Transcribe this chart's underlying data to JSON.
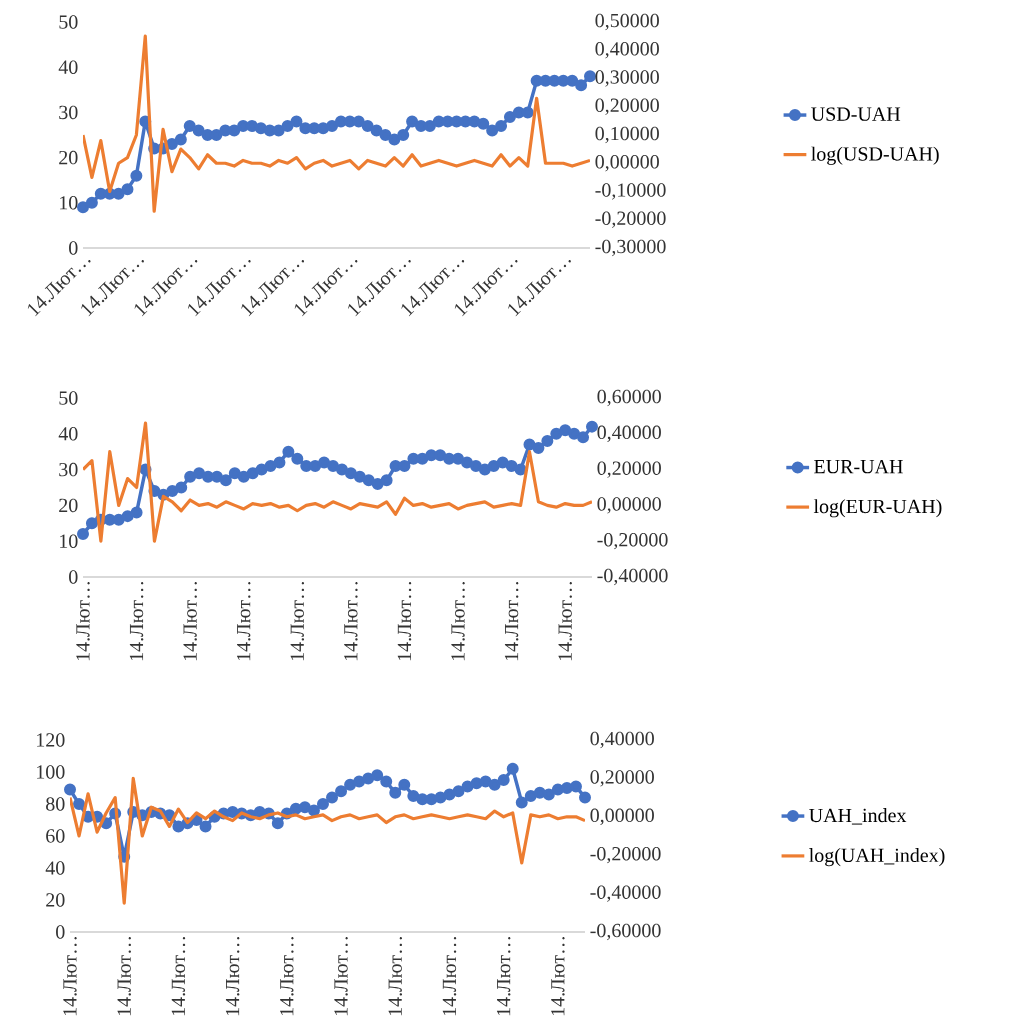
{
  "chart_data": [
    {
      "type": "line",
      "categories": [
        "14.Лют…",
        null,
        null,
        null,
        null,
        null,
        "14.Лют…",
        null,
        null,
        null,
        null,
        null,
        "14.Лют…",
        null,
        null,
        null,
        null,
        null,
        "14.Лют…",
        null,
        null,
        null,
        null,
        null,
        "14.Лют…",
        null,
        null,
        null,
        null,
        null,
        "14.Лют…",
        null,
        null,
        null,
        null,
        null,
        "14.Лют…",
        null,
        null,
        null,
        null,
        null,
        "14.Лют…",
        null,
        null,
        null,
        null,
        null,
        "14.Лют…",
        null,
        null,
        null,
        null,
        null,
        "14.Лют…",
        null,
        null,
        null
      ],
      "series": [
        {
          "name": "USD-UAH",
          "color": "#4472c4",
          "marker": "circle",
          "values": [
            9,
            10,
            12,
            12,
            12,
            13,
            16,
            28,
            22,
            22,
            23,
            24,
            27,
            26,
            25,
            25,
            26,
            26,
            27,
            27,
            26.5,
            26,
            26,
            27,
            28,
            26.5,
            26.5,
            26.5,
            27,
            28,
            28,
            28,
            27,
            26,
            25,
            24,
            25,
            28,
            27,
            27,
            28,
            28,
            28,
            28,
            28,
            27.5,
            26,
            27,
            29,
            30,
            30,
            37,
            37,
            37,
            37,
            37,
            36,
            38
          ]
        },
        {
          "name": "log(USD-UAH)",
          "color": "#ed7d31",
          "marker": "none",
          "axis": "y2",
          "values": [
            0.1,
            -0.05,
            0.08,
            -0.1,
            0.0,
            0.02,
            0.1,
            0.45,
            -0.17,
            0.12,
            -0.03,
            0.05,
            0.02,
            -0.02,
            0.03,
            0.0,
            0.0,
            -0.01,
            0.01,
            0.0,
            0.0,
            -0.01,
            0.01,
            0.0,
            0.02,
            -0.02,
            0.0,
            0.01,
            -0.01,
            0.0,
            0.01,
            -0.02,
            0.01,
            0.0,
            -0.01,
            0.02,
            -0.01,
            0.03,
            -0.01,
            0.0,
            0.01,
            0.0,
            -0.01,
            0.0,
            0.01,
            0.0,
            -0.01,
            0.03,
            -0.01,
            0.02,
            -0.01,
            0.23,
            0.0,
            0.0,
            0.0,
            -0.01,
            0.0,
            0.01
          ]
        }
      ],
      "ylim": [
        0,
        50
      ],
      "yticks": [
        0,
        10,
        20,
        30,
        40,
        50
      ],
      "y2lim": [
        -0.3,
        0.5
      ],
      "y2ticks": [
        {
          "value": -0.3,
          "label": "-0,30000"
        },
        {
          "value": -0.2,
          "label": "-0,20000"
        },
        {
          "value": -0.1,
          "label": "-0,10000"
        },
        {
          "value": 0,
          "label": "0,00000"
        },
        {
          "value": 0.1,
          "label": "0,10000"
        },
        {
          "value": 0.2,
          "label": "0,20000"
        },
        {
          "value": 0.3,
          "label": "0,30000"
        },
        {
          "value": 0.4,
          "label": "0,40000"
        },
        {
          "value": 0.5,
          "label": "0,50000"
        }
      ],
      "legend": "right"
    },
    {
      "type": "line",
      "categories": [
        "14.Лют…",
        null,
        null,
        null,
        null,
        null,
        "14.Лют…",
        null,
        null,
        null,
        null,
        null,
        "14.Лют…",
        null,
        null,
        null,
        null,
        null,
        "14.Лют…",
        null,
        null,
        null,
        null,
        null,
        "14.Лют…",
        null,
        null,
        null,
        null,
        null,
        "14.Лют…",
        null,
        null,
        null,
        null,
        null,
        "14.Лют…",
        null,
        null,
        null,
        null,
        null,
        "14.Лют…",
        null,
        null,
        null,
        null,
        null,
        "14.Лют…",
        null,
        null,
        null,
        null,
        null,
        "14.Лют…",
        null,
        null,
        null
      ],
      "series": [
        {
          "name": "EUR-UAH",
          "color": "#4472c4",
          "marker": "circle",
          "values": [
            12,
            15,
            16,
            16,
            16,
            17,
            18,
            30,
            24,
            23,
            24,
            25,
            28,
            29,
            28,
            28,
            27,
            29,
            28,
            29,
            30,
            31,
            32,
            35,
            33,
            31,
            31,
            32,
            31,
            30,
            29,
            28,
            27,
            26,
            27,
            31,
            31,
            33,
            33,
            34,
            34,
            33,
            33,
            32,
            31,
            30,
            31,
            32,
            31,
            30,
            37,
            36,
            38,
            40,
            41,
            40,
            39,
            42
          ]
        },
        {
          "name": "log(EUR-UAH)",
          "color": "#ed7d31",
          "marker": "none",
          "axis": "y2",
          "values": [
            0.2,
            0.25,
            -0.2,
            0.3,
            0.0,
            0.15,
            0.1,
            0.46,
            -0.2,
            0.05,
            0.02,
            -0.03,
            0.03,
            0.0,
            0.01,
            -0.01,
            0.02,
            0.0,
            -0.02,
            0.01,
            0.0,
            0.01,
            -0.01,
            0.0,
            -0.03,
            0.0,
            0.01,
            -0.01,
            0.02,
            0.0,
            -0.02,
            0.01,
            0.0,
            -0.01,
            0.02,
            -0.05,
            0.04,
            0.0,
            0.01,
            -0.01,
            0.0,
            0.01,
            -0.02,
            0.0,
            0.01,
            0.02,
            -0.01,
            0.0,
            0.01,
            0.0,
            0.3,
            0.02,
            0.0,
            -0.01,
            0.01,
            0.0,
            0.0,
            0.02
          ]
        }
      ],
      "ylim": [
        0,
        50
      ],
      "yticks": [
        0,
        10,
        20,
        30,
        40,
        50
      ],
      "y2lim": [
        -0.4,
        0.6
      ],
      "y2ticks": [
        {
          "value": -0.4,
          "label": "-0,40000"
        },
        {
          "value": -0.2,
          "label": "-0,20000"
        },
        {
          "value": 0,
          "label": "0,00000"
        },
        {
          "value": 0.2,
          "label": "0,20000"
        },
        {
          "value": 0.4,
          "label": "0,40000"
        },
        {
          "value": 0.6,
          "label": "0,60000"
        }
      ],
      "legend": "right"
    },
    {
      "type": "line",
      "categories": [
        "14.Лют…",
        null,
        null,
        null,
        null,
        null,
        "14.Лют…",
        null,
        null,
        null,
        null,
        null,
        "14.Лют…",
        null,
        null,
        null,
        null,
        null,
        "14.Лют…",
        null,
        null,
        null,
        null,
        null,
        "14.Лют…",
        null,
        null,
        null,
        null,
        null,
        "14.Лют…",
        null,
        null,
        null,
        null,
        null,
        "14.Лют…",
        null,
        null,
        null,
        null,
        null,
        "14.Лют…",
        null,
        null,
        null,
        null,
        null,
        "14.Лют…",
        null,
        null,
        null,
        null,
        null,
        "14.Лют…",
        null,
        null,
        null
      ],
      "series": [
        {
          "name": "UAH_index",
          "color": "#4472c4",
          "marker": "circle",
          "values": [
            89,
            80,
            72,
            72,
            68,
            74,
            47,
            75,
            73,
            75,
            74,
            73,
            66,
            68,
            70,
            66,
            72,
            74,
            75,
            74,
            73,
            75,
            74,
            68,
            74,
            77,
            78,
            76,
            80,
            84,
            88,
            92,
            94,
            96,
            98,
            94,
            87,
            92,
            85,
            83,
            83,
            84,
            86,
            88,
            91,
            93,
            94,
            92,
            95,
            102,
            81,
            85,
            87,
            86,
            89,
            90,
            91,
            84
          ]
        },
        {
          "name": "log(UAH_index)",
          "color": "#ed7d31",
          "marker": "none",
          "axis": "y2",
          "values": [
            0.1,
            -0.1,
            0.12,
            -0.08,
            0.02,
            0.1,
            -0.45,
            0.2,
            -0.1,
            0.05,
            0.03,
            -0.05,
            0.04,
            -0.03,
            0.02,
            -0.01,
            0.03,
            0.0,
            -0.02,
            0.02,
            0.0,
            -0.01,
            0.01,
            0.02,
            0.0,
            0.01,
            -0.01,
            0.0,
            0.01,
            -0.02,
            0.0,
            0.01,
            -0.01,
            0.0,
            0.01,
            -0.03,
            0.0,
            0.01,
            -0.01,
            0.0,
            0.01,
            0.0,
            -0.01,
            0.0,
            0.01,
            0.0,
            -0.01,
            0.03,
            0.0,
            0.02,
            -0.24,
            0.01,
            0.0,
            0.01,
            -0.01,
            0.0,
            0.0,
            -0.02
          ]
        }
      ],
      "ylim": [
        0,
        120
      ],
      "yticks": [
        0,
        20,
        40,
        60,
        80,
        100,
        120
      ],
      "y2lim": [
        -0.6,
        0.4
      ],
      "y2ticks": [
        {
          "value": -0.6,
          "label": "-0,60000"
        },
        {
          "value": -0.4,
          "label": "-0,40000"
        },
        {
          "value": -0.2,
          "label": "-0,20000"
        },
        {
          "value": 0,
          "label": "0,00000"
        },
        {
          "value": 0.2,
          "label": "0,20000"
        },
        {
          "value": 0.4,
          "label": "0,40000"
        }
      ],
      "legend": "right"
    }
  ]
}
